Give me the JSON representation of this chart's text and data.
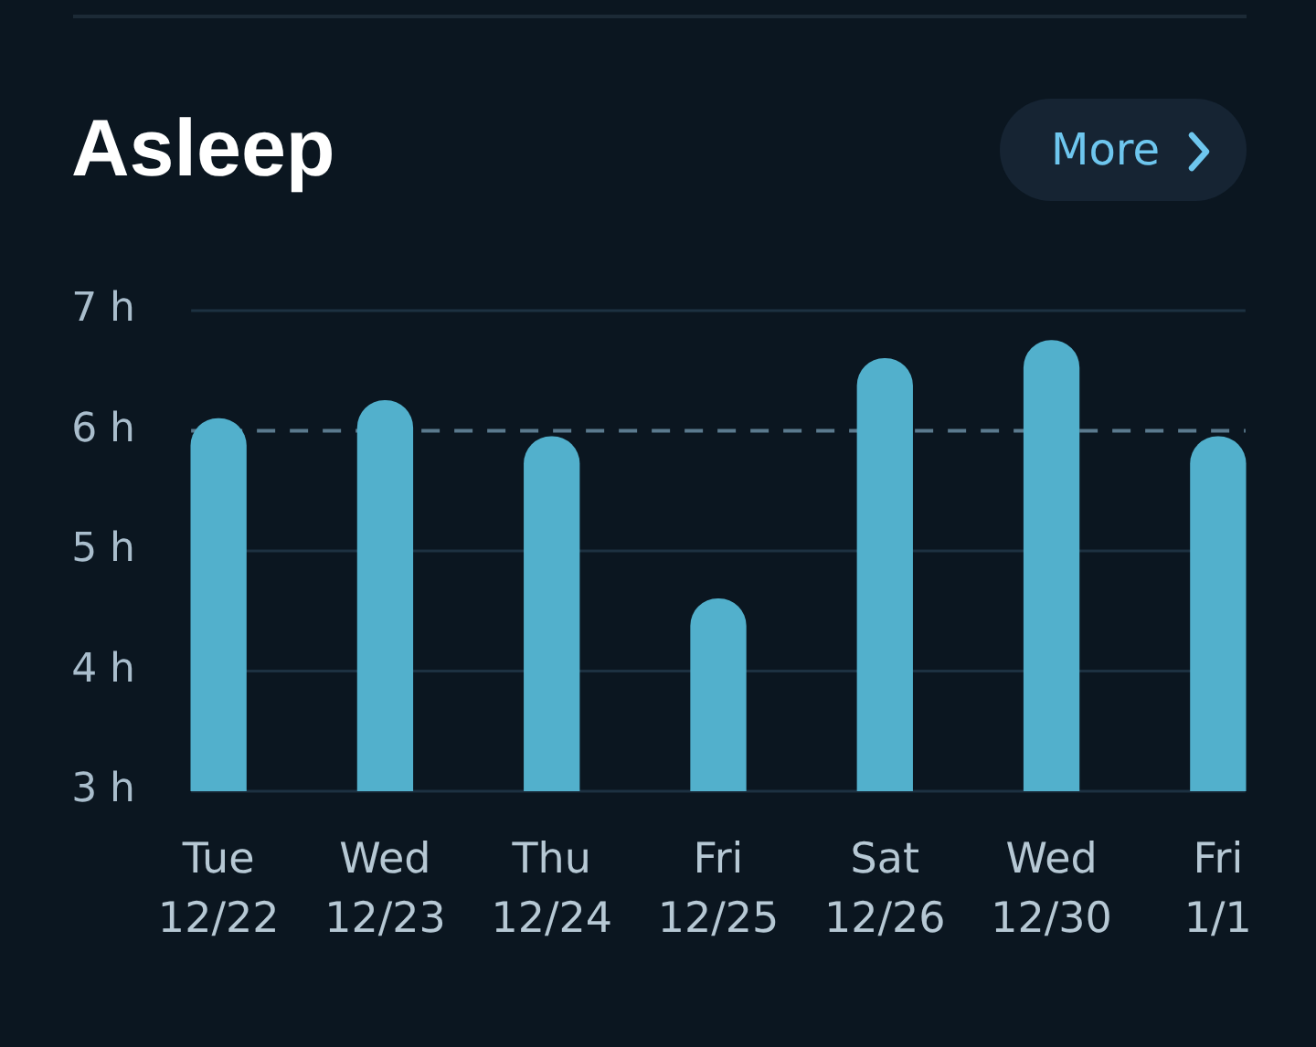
{
  "chart_data": {
    "type": "bar",
    "title": "Asleep",
    "categories": [
      "Tue\n12/22",
      "Wed\n12/23",
      "Thu\n12/24",
      "Fri\n12/25",
      "Sat\n12/26",
      "Wed\n12/30",
      "Fri\n1/1"
    ],
    "values": [
      6.1,
      6.25,
      5.95,
      4.6,
      6.6,
      6.75,
      5.95
    ],
    "color": "#52b0cc",
    "ylim": [
      3,
      7
    ],
    "yticks": [
      {
        "value": 3,
        "label": "3 h"
      },
      {
        "value": 4,
        "label": "4 h"
      },
      {
        "value": 5,
        "label": "5 h"
      },
      {
        "value": 6,
        "label": "6 h"
      },
      {
        "value": 7,
        "label": "7 h"
      }
    ],
    "grid": "y",
    "ref_lines": [
      {
        "axis": "y",
        "value": 6,
        "color": "#5b7a8e",
        "line_style": "dashed"
      }
    ],
    "annotations": [
      "More"
    ]
  }
}
